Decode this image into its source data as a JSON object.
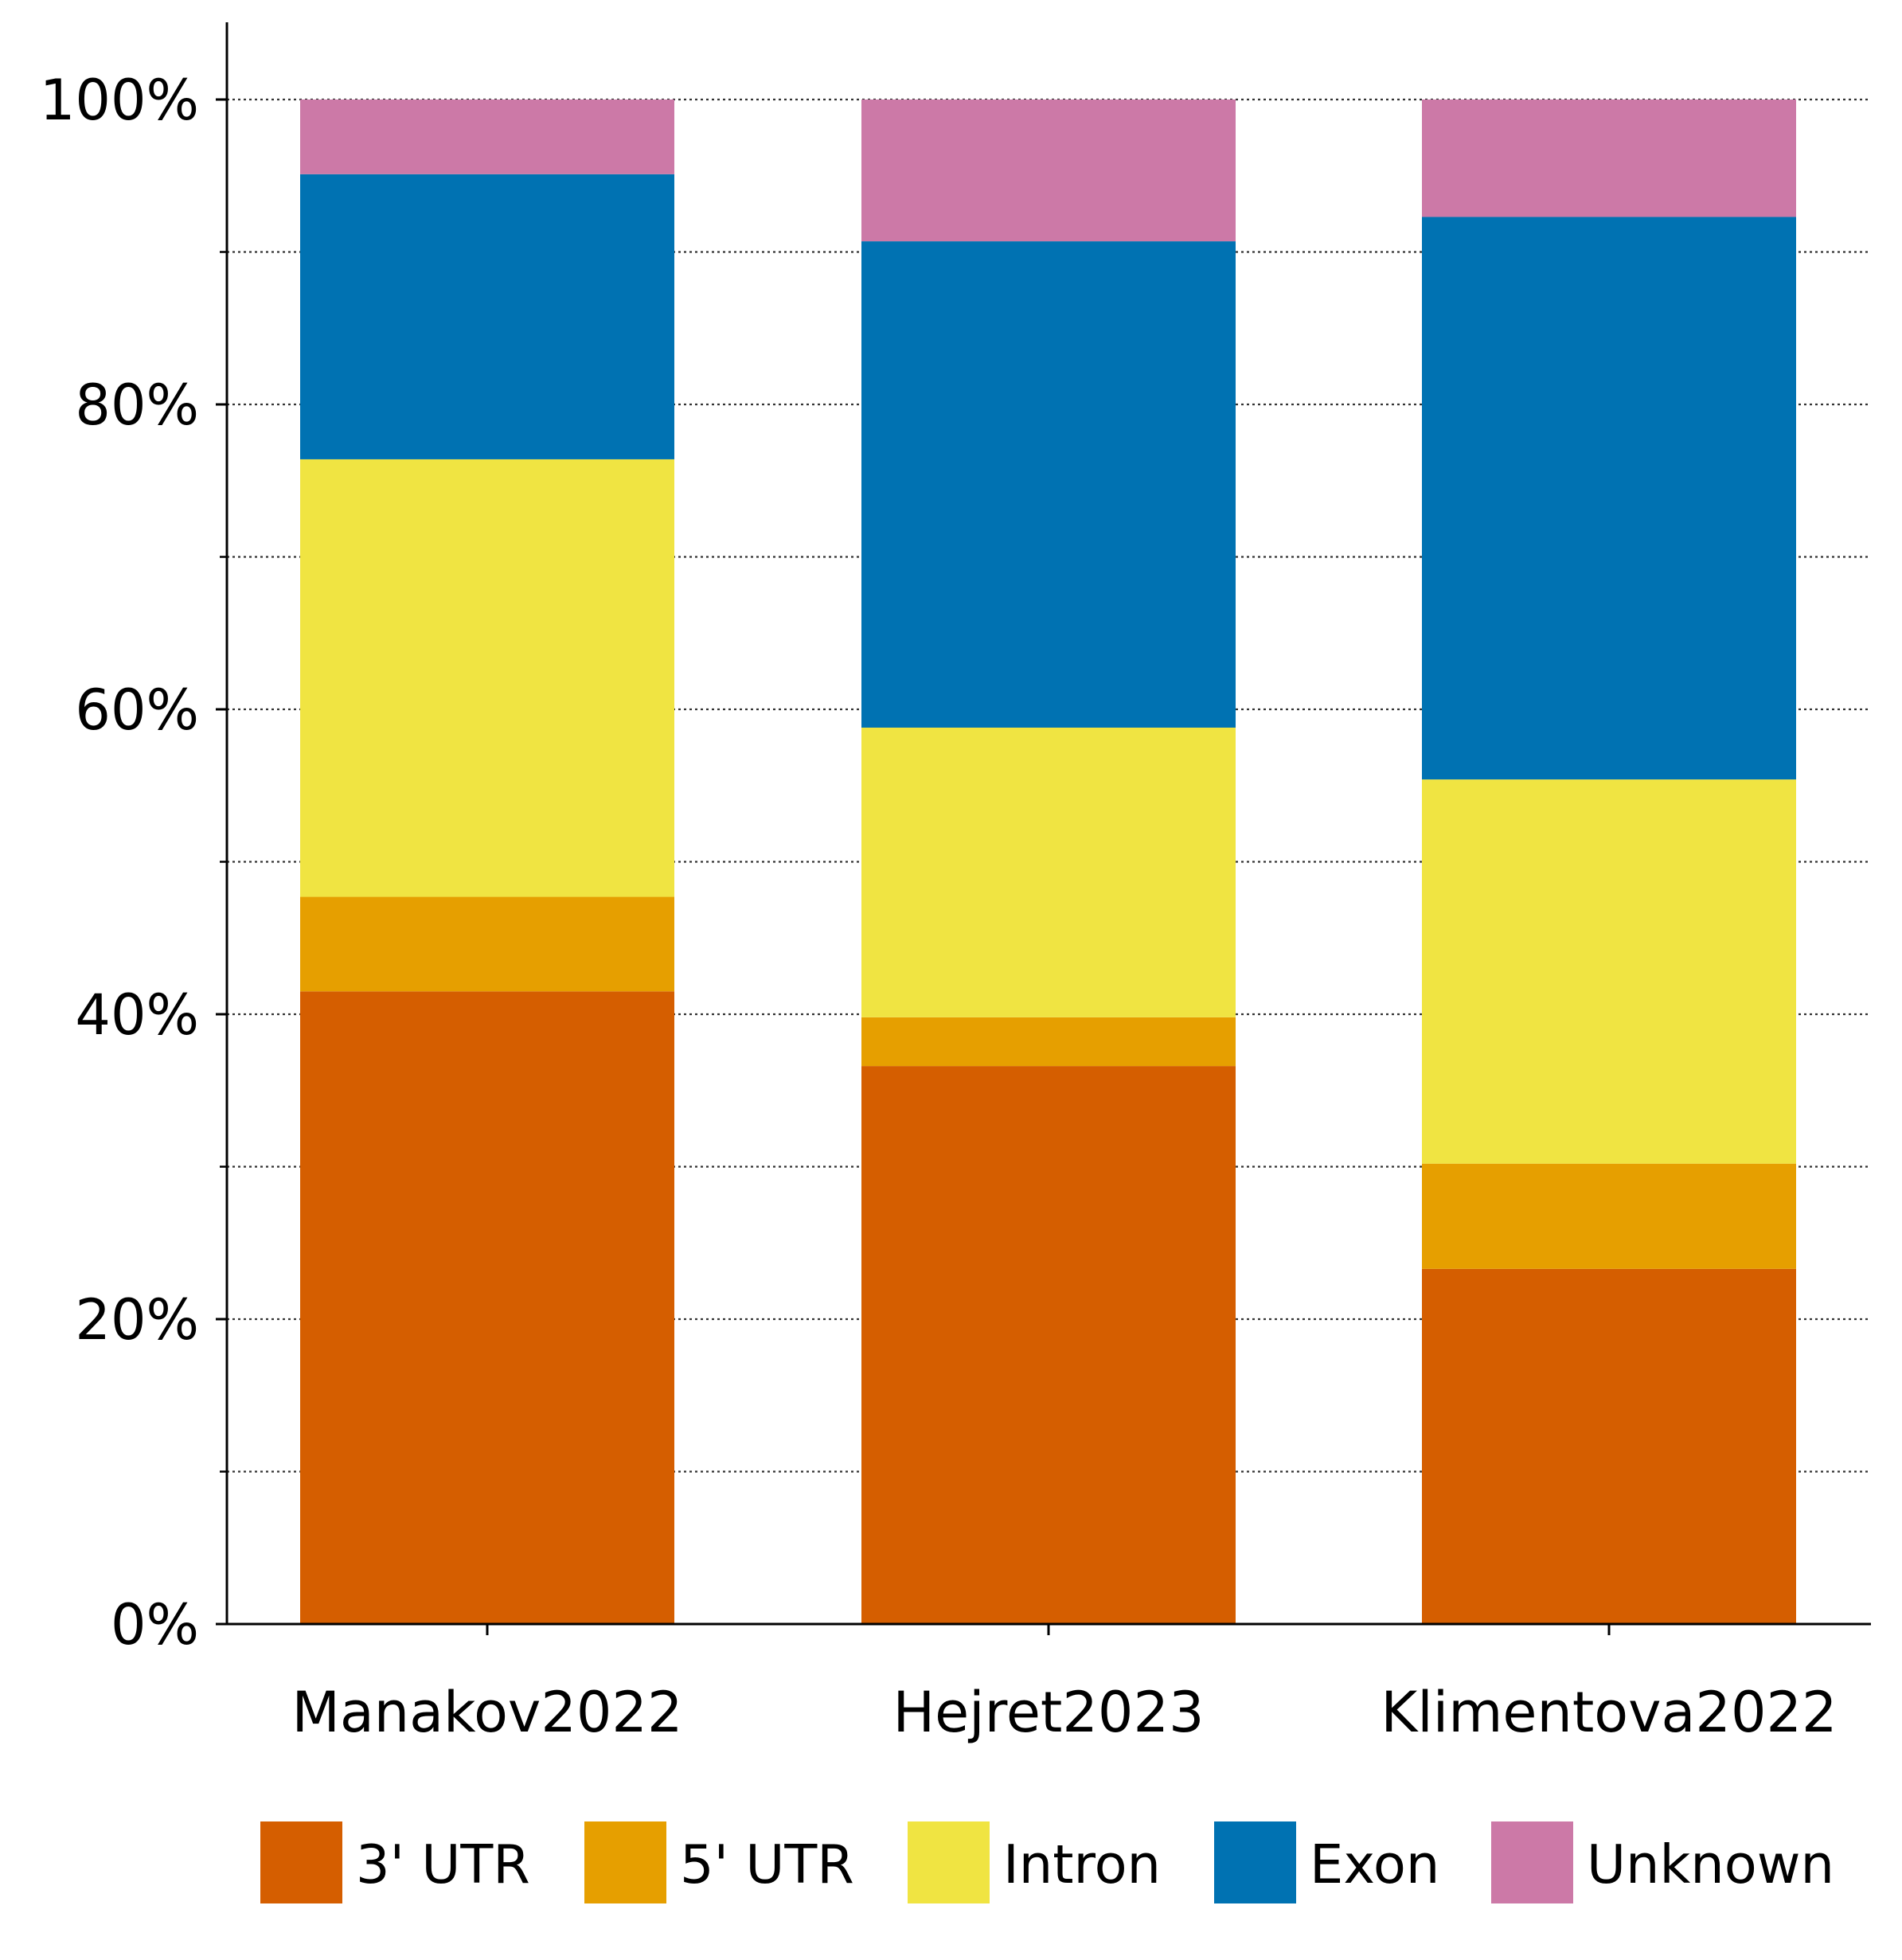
{
  "chart_data": {
    "type": "bar",
    "stacked": true,
    "categories": [
      "Manakov2022",
      "Hejret2023",
      "Klimentova2022"
    ],
    "series": [
      {
        "name": "3' UTR",
        "color": "#D55E00",
        "values": [
          41.5,
          36.6,
          23.3
        ]
      },
      {
        "name": "5' UTR",
        "color": "#E69F00",
        "values": [
          6.2,
          3.2,
          6.9
        ]
      },
      {
        "name": "Intron",
        "color": "#F0E442",
        "values": [
          28.7,
          19.0,
          25.2
        ]
      },
      {
        "name": "Exon",
        "color": "#0072B2",
        "values": [
          18.7,
          31.9,
          36.9
        ]
      },
      {
        "name": "Unknown",
        "color": "#CC79A7",
        "values": [
          4.9,
          9.3,
          7.7
        ]
      }
    ],
    "yticks": [
      0,
      20,
      40,
      60,
      80,
      100
    ],
    "ytick_labels": [
      "0%",
      "20%",
      "40%",
      "60%",
      "80%",
      "100%"
    ],
    "minor_yticks": [
      10,
      30,
      50,
      70,
      90
    ],
    "ylim": [
      0,
      105
    ],
    "grid": true,
    "legend_position": "bottom"
  }
}
